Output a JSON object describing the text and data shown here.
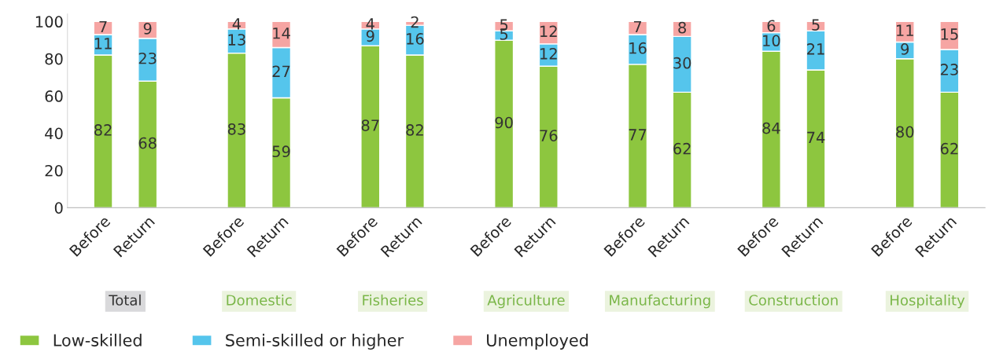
{
  "chart_data": {
    "type": "bar",
    "stacked": true,
    "categories": [
      "Before",
      "Return",
      "Before",
      "Return",
      "Before",
      "Return",
      "Before",
      "Return",
      "Before",
      "Return",
      "Before",
      "Return",
      "Before",
      "Return"
    ],
    "series": [
      {
        "name": "Low-skilled",
        "color": "#8dc63f",
        "values": [
          82,
          68,
          83,
          59,
          87,
          82,
          90,
          76,
          77,
          62,
          84,
          74,
          80,
          62
        ]
      },
      {
        "name": "Semi-skilled or higher",
        "color": "#55c5ec",
        "values": [
          11,
          23,
          13,
          27,
          9,
          16,
          5,
          12,
          16,
          30,
          10,
          21,
          9,
          23
        ]
      },
      {
        "name": "Unemployed",
        "color": "#f6a5a3",
        "values": [
          7,
          9,
          4,
          14,
          4,
          2,
          5,
          12,
          7,
          8,
          6,
          5,
          11,
          15
        ]
      }
    ],
    "annotations": [
      "Total",
      "Domestic",
      "Fisheries",
      "Agriculture",
      "Manufacturing",
      "Construction",
      "Hospitality"
    ],
    "ylim": [
      0,
      104
    ],
    "yticks": [
      0,
      20,
      40,
      60,
      80,
      100
    ],
    "data_labels": true,
    "grid": false,
    "legend": "bottom left"
  }
}
